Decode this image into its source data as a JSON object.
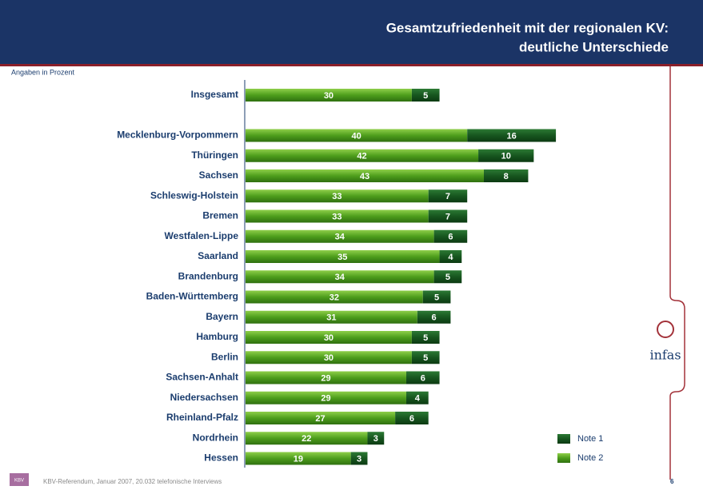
{
  "chart_data": {
    "type": "stacked-bar-horizontal",
    "title": [
      "Gesamtzufriedenheit mit der regionalen KV:",
      "deutliche Unterschiede"
    ],
    "subtitle": "Angaben in Prozent",
    "categories": [
      "Insgesamt",
      null,
      "Mecklenburg-Vorpommern",
      "Thüringen",
      "Sachsen",
      "Schleswig-Holstein",
      "Bremen",
      "Westfalen-Lippe",
      "Saarland",
      "Brandenburg",
      "Baden-Württemberg",
      "Bayern",
      "Hamburg",
      "Berlin",
      "Sachsen-Anhalt",
      "Niedersachsen",
      "Rheinland-Pfalz",
      "Nordrhein",
      "Hessen"
    ],
    "series": [
      {
        "name": "Note 2",
        "color": "#4e9e1c",
        "values": [
          30,
          null,
          40,
          42,
          43,
          33,
          33,
          34,
          35,
          34,
          32,
          31,
          30,
          30,
          29,
          29,
          27,
          22,
          19
        ]
      },
      {
        "name": "Note 1",
        "color": "#17561f",
        "values": [
          5,
          null,
          16,
          10,
          8,
          7,
          7,
          6,
          4,
          5,
          5,
          6,
          5,
          5,
          6,
          4,
          6,
          3,
          3
        ]
      }
    ],
    "legend": [
      "Note 1",
      "Note 2"
    ],
    "footer": "KBV-Referendum, Januar 2007, 20.032 telefonische Interviews",
    "page_number": "6",
    "logo": "infas",
    "kbv_logo": "KBV"
  }
}
